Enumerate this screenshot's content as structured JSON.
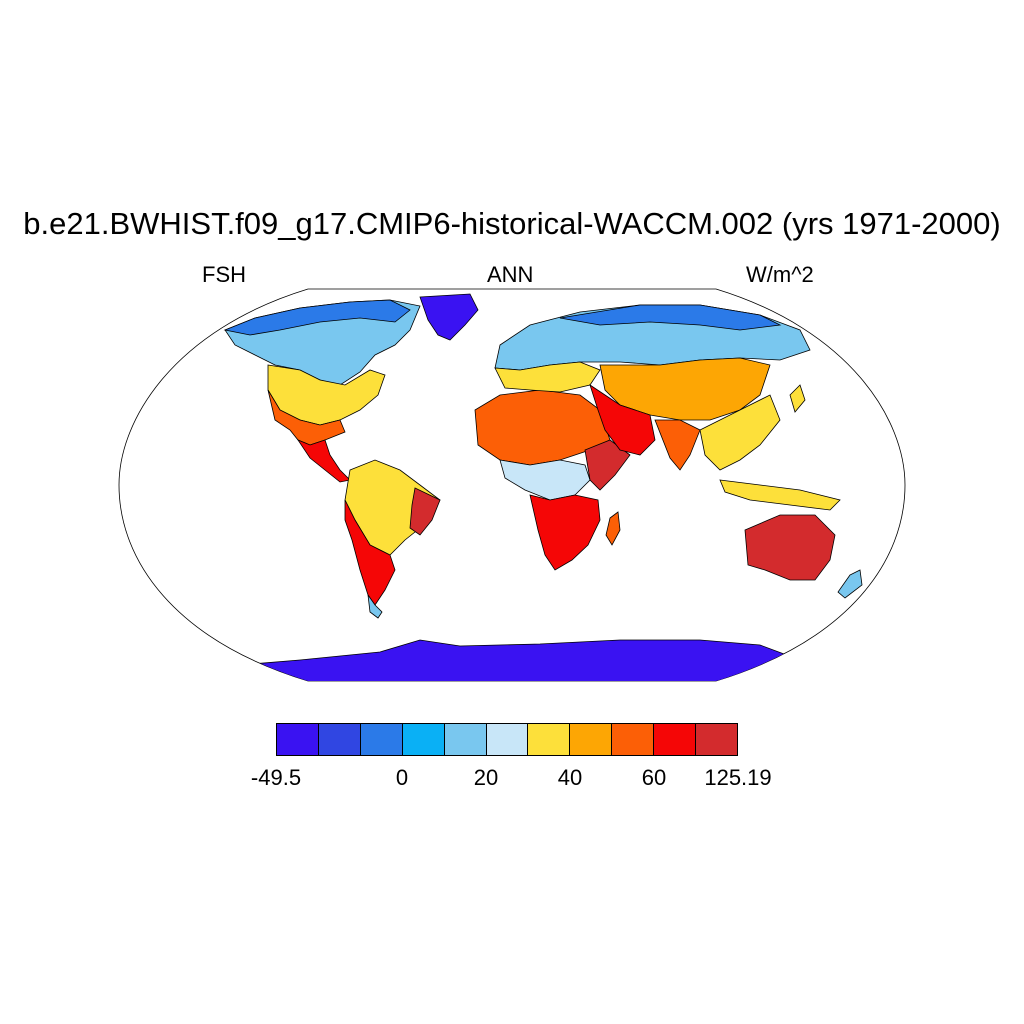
{
  "header": {
    "title": "b.e21.BWHIST.f09_g17.CMIP6-historical-WACCM.002 (yrs 1971-2000)",
    "left": "FSH",
    "center": "ANN",
    "right": "W/m^2"
  },
  "colorbar": {
    "colors": [
      "#3a12f2",
      "#3046e2",
      "#2b7ae8",
      "#0ab0f5",
      "#79c7ef",
      "#c8e6f8",
      "#fde03a",
      "#fda604",
      "#fc5f06",
      "#f50606",
      "#d32b2d"
    ],
    "tick_labels": [
      "-49.5",
      "0",
      "20",
      "40",
      "60",
      "125.19"
    ]
  },
  "map": {
    "projection": "Robinson",
    "ocean_color": "#ffffff",
    "coast_color": "#000000"
  }
}
